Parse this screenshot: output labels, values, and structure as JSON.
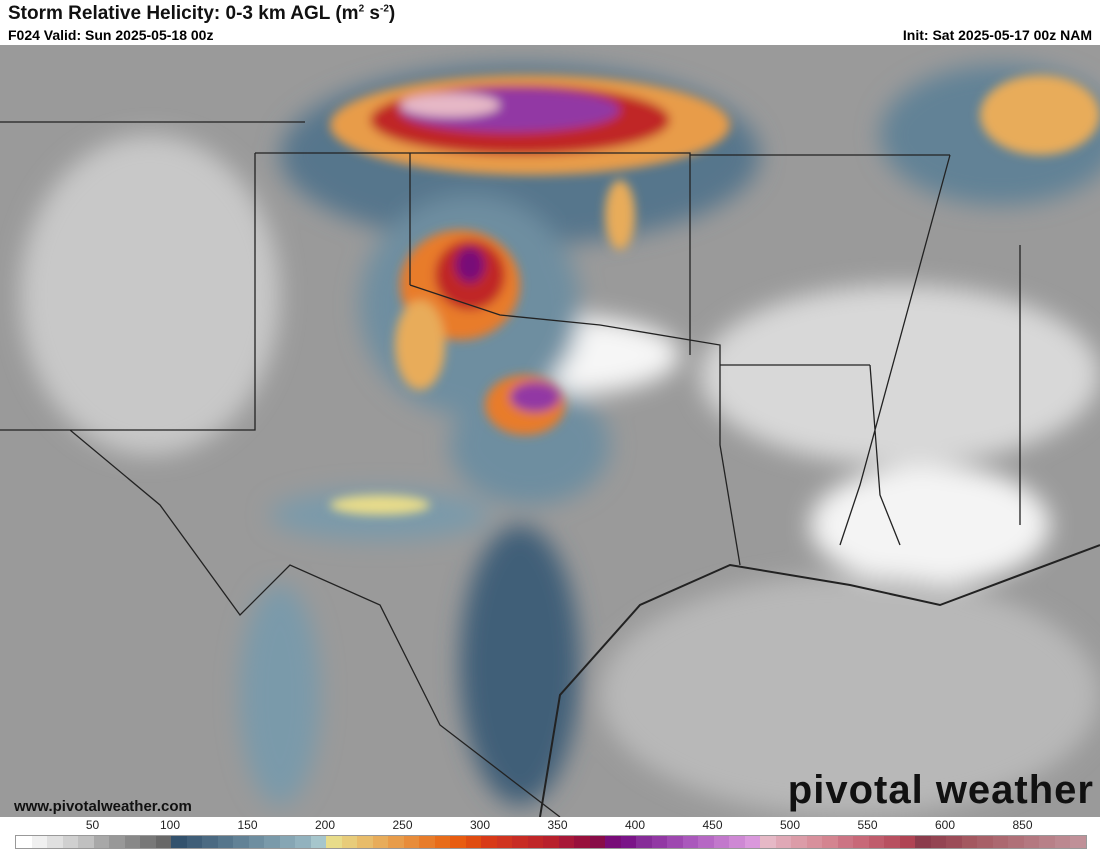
{
  "header": {
    "title": "Storm Relative Helicity: 0-3 km AGL (m",
    "title_sup1": "2",
    "title_mid": " s",
    "title_sup2": "-2",
    "title_end": ")",
    "valid": "F024 Valid: Sun 2025-05-18 00z",
    "init": "Init: Sat 2025-05-17 00z NAM"
  },
  "footer": {
    "site": "www.pivotalweather.com",
    "logo": "pivotal weather"
  },
  "colorbar": {
    "labels": [
      "50",
      "100",
      "150",
      "200",
      "250",
      "300",
      "350",
      "400",
      "450",
      "500",
      "550",
      "600",
      "850"
    ],
    "colors": [
      "#ffffff",
      "#f0f0f0",
      "#e0e0e0",
      "#d0d0d0",
      "#c0c0c0",
      "#a8a8a8",
      "#989898",
      "#888888",
      "#787878",
      "#686868",
      "#33526d",
      "#3f5e78",
      "#4b6a82",
      "#56768c",
      "#628296",
      "#6e8ea0",
      "#7a9aaa",
      "#86a6b4",
      "#92b2be",
      "#a6c6cc",
      "#e8dc8a",
      "#e8cc7a",
      "#e8bc6a",
      "#e8ac5a",
      "#e89c4a",
      "#e88c3a",
      "#e87c2a",
      "#e86c1a",
      "#e85c10",
      "#e04c10",
      "#d83a18",
      "#d03420",
      "#c82c24",
      "#c02628",
      "#b8202c",
      "#a81838",
      "#98103c",
      "#880c48",
      "#780c78",
      "#7a1488",
      "#862c98",
      "#9238a4",
      "#9e48b0",
      "#aa58bc",
      "#b668c4",
      "#c278cc",
      "#ce88d4",
      "#da98dc",
      "#e6b8c6",
      "#e0a8b6",
      "#dc9ca8",
      "#d8909c",
      "#d48490",
      "#cc7484",
      "#c86878",
      "#c05c6c",
      "#b85060",
      "#b04454",
      "#8c3c4c",
      "#944452",
      "#9c4c58",
      "#a45860",
      "#a86068",
      "#ac6870",
      "#b07078",
      "#b47880",
      "#b88088",
      "#bc8890",
      "#c09098"
    ]
  },
  "map": {
    "variable": "0-3 km SRH",
    "region": "Southern Plains"
  }
}
